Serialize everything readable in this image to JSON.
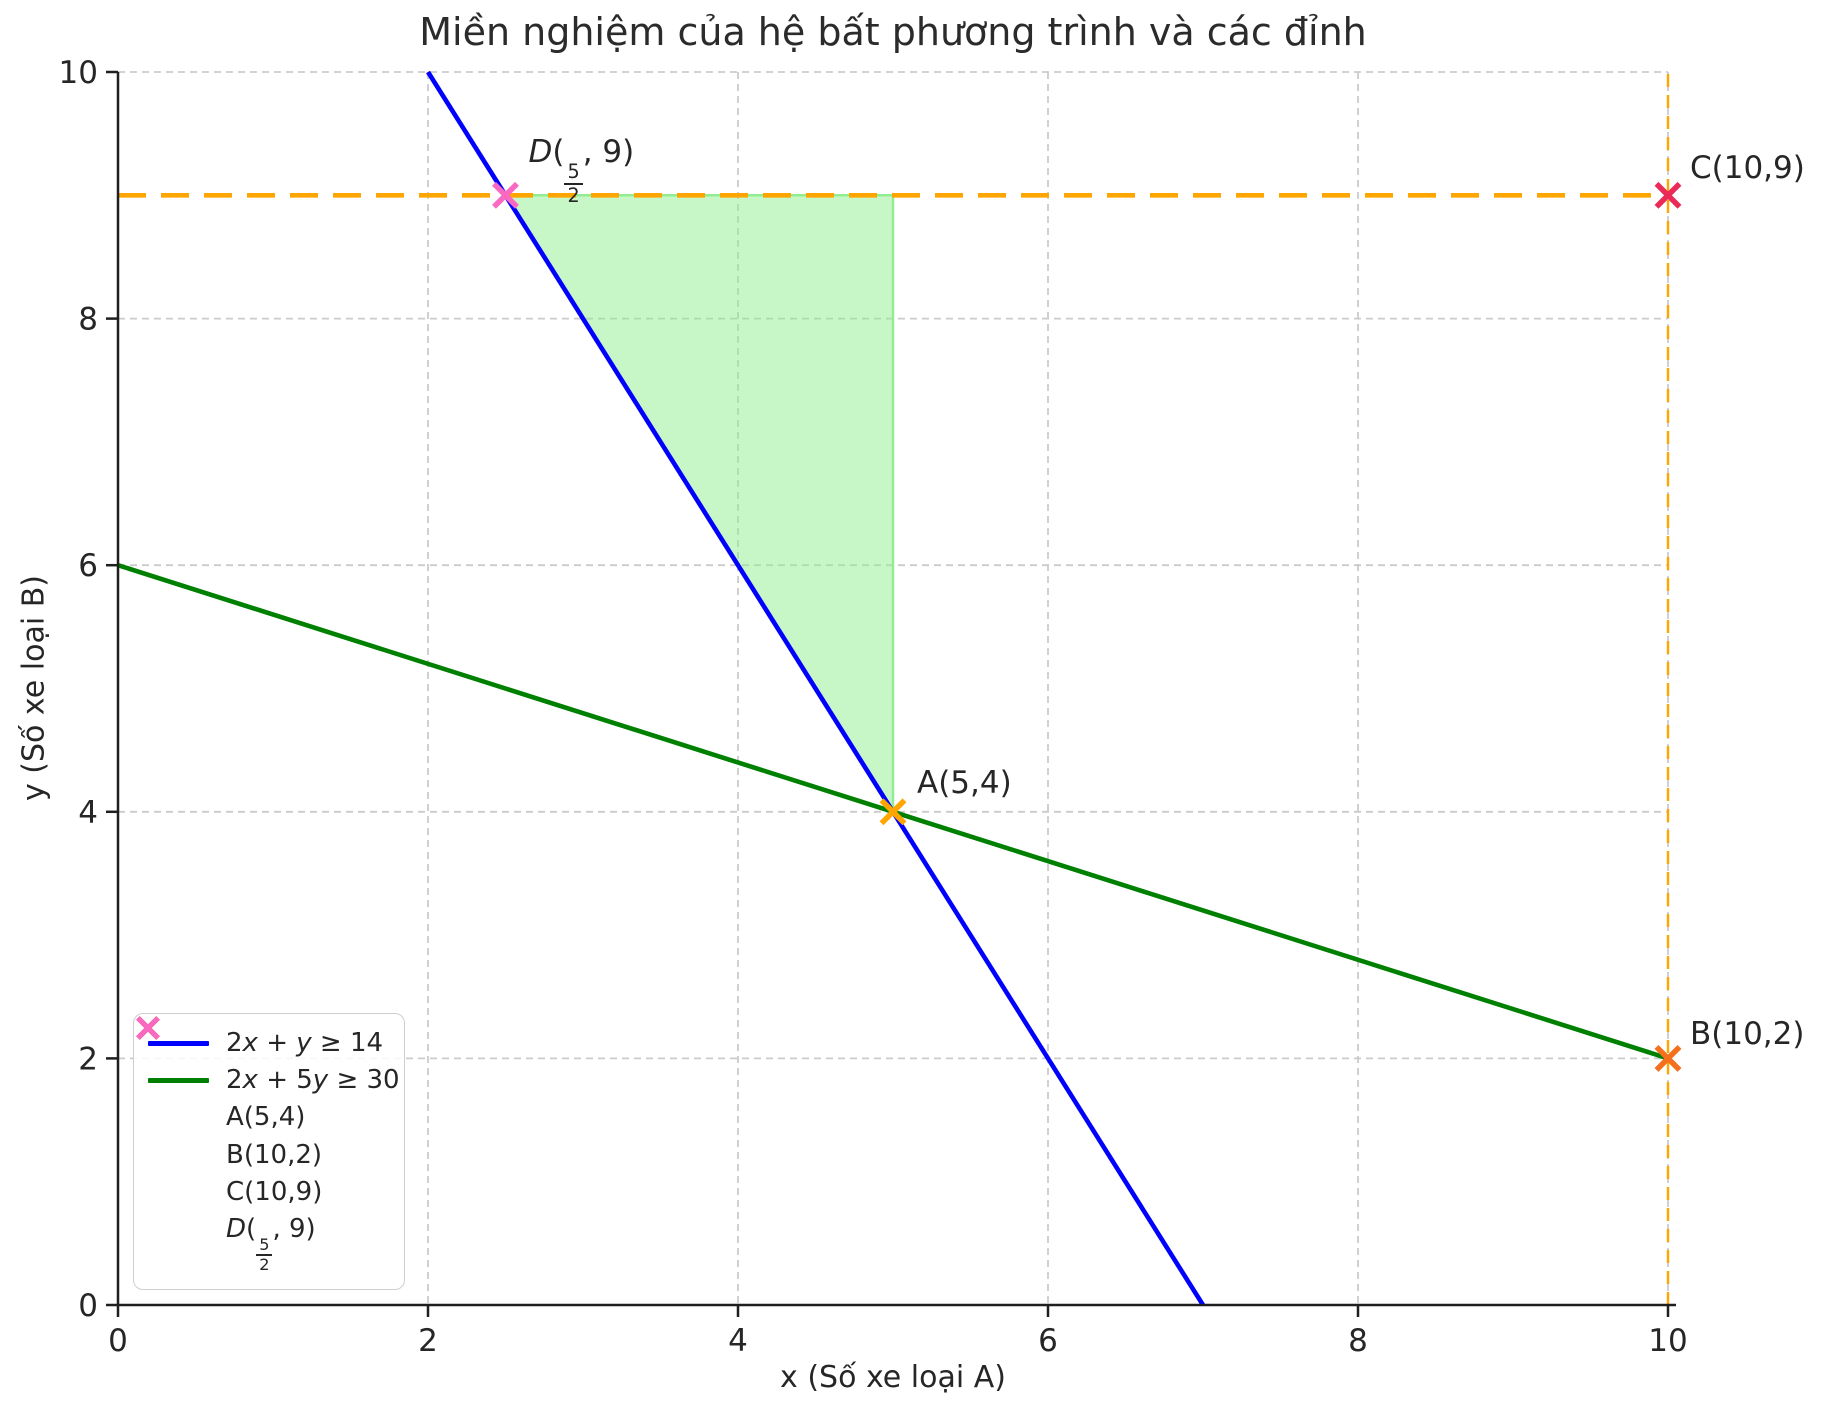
{
  "chart_data": {
    "type": "line",
    "title": "Miền nghiệm của hệ bất phương trình và các đỉnh",
    "xlabel": "x (Số xe loại A)",
    "ylabel": "y (Số xe loại B)",
    "xlim": [
      0,
      10
    ],
    "ylim": [
      0,
      10
    ],
    "xticks": [
      0,
      2,
      4,
      6,
      8,
      10
    ],
    "yticks": [
      0,
      2,
      4,
      6,
      8,
      10
    ],
    "grid": true,
    "grid_color": "#cbcbcb",
    "grid_dash": "7 5",
    "spine_color": "#1f1f1f",
    "lines": [
      {
        "key": "blue-boundary",
        "label": "2x + y ≥ 14",
        "math": true,
        "color": "#0000ff",
        "width": 4.6,
        "dash": null,
        "points": [
          [
            2,
            10
          ],
          [
            7,
            0
          ]
        ],
        "in_legend": true
      },
      {
        "key": "green-boundary",
        "label": "2x + 5y ≥ 30",
        "math": true,
        "color": "#008000",
        "width": 4.6,
        "dash": null,
        "points": [
          [
            0,
            6
          ],
          [
            10,
            2
          ]
        ],
        "in_legend": true
      },
      {
        "key": "y9-dashed",
        "label": "y = 9",
        "math": false,
        "color": "#ffa500",
        "width": 4.6,
        "dash": "28 15",
        "points": [
          [
            0,
            9
          ],
          [
            10,
            9
          ]
        ],
        "in_legend": false
      },
      {
        "key": "x10-dashed",
        "label": "x = 10",
        "math": false,
        "color": "#ffa500",
        "width": 2.4,
        "dash": "13 8",
        "points": [
          [
            10,
            0
          ],
          [
            10,
            10
          ]
        ],
        "in_legend": false
      }
    ],
    "region": {
      "name": "feasible-region",
      "vertices": [
        [
          2.5,
          9
        ],
        [
          5,
          9
        ],
        [
          5,
          4
        ]
      ],
      "fill": "#90ee90",
      "fill_opacity": 0.5,
      "edge_color": "#90ee90",
      "edge_width": 2.5
    },
    "points": [
      {
        "name": "A",
        "x": 5,
        "y": 4,
        "color": "#ffa500",
        "label": "A(5,4)",
        "math": false,
        "label_offset": [
          24,
          -46
        ]
      },
      {
        "name": "B",
        "x": 10,
        "y": 2,
        "color": "#f4701d",
        "label": "B(10,2)",
        "math": false,
        "label_offset": [
          22,
          -41
        ]
      },
      {
        "name": "C",
        "x": 10,
        "y": 9,
        "color": "#ea2b57",
        "label": "C(10,9)",
        "math": false,
        "label_offset": [
          22,
          -44
        ]
      },
      {
        "name": "D",
        "x": 2.5,
        "y": 9,
        "color": "#f969c1",
        "label": "D(5/2, 9)",
        "math": true,
        "label_offset": [
          23,
          -60
        ]
      }
    ]
  },
  "legend": {
    "items": [
      {
        "type": "line",
        "color": "#0000ff",
        "label": "2x + y ≥ 14",
        "math": true
      },
      {
        "type": "line",
        "color": "#008000",
        "label": "2x + 5y ≥ 30",
        "math": true
      },
      {
        "type": "marker",
        "color": "#ffa500",
        "label": "A(5,4)",
        "math": false
      },
      {
        "type": "marker",
        "color": "#f4701d",
        "label": "B(10,2)",
        "math": false
      },
      {
        "type": "marker",
        "color": "#ea2b57",
        "label": "C(10,9)",
        "math": false
      },
      {
        "type": "marker",
        "color": "#f969c1",
        "label": "D(5/2, 9)",
        "math": true
      }
    ]
  }
}
